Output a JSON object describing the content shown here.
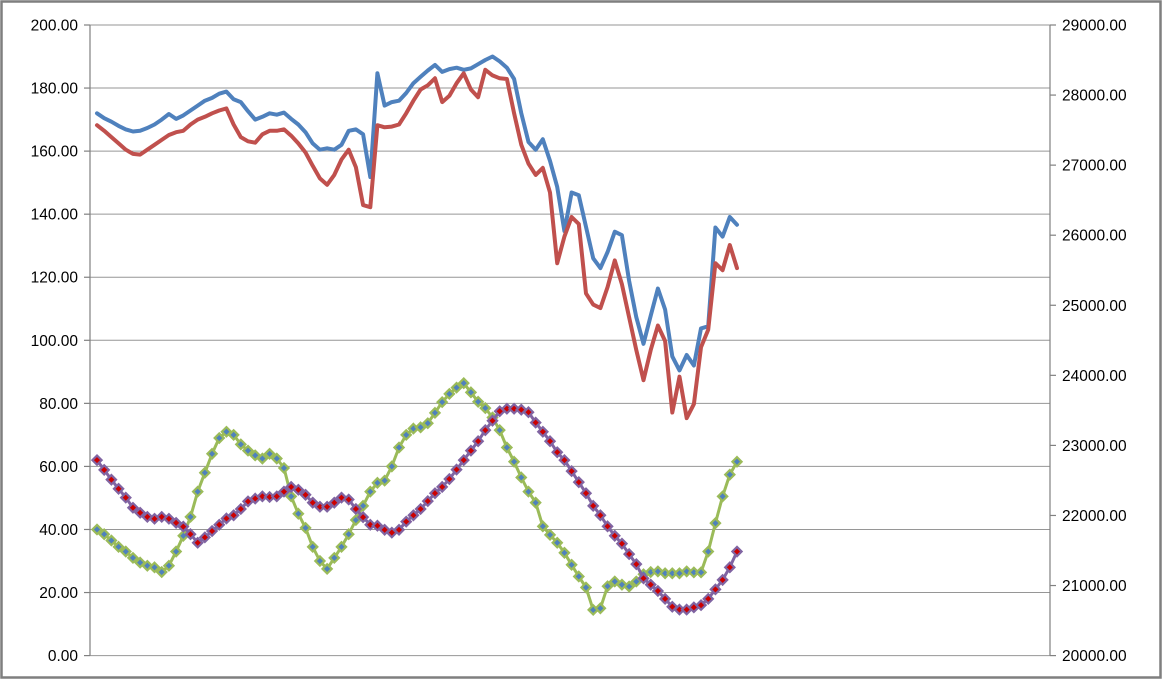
{
  "frame": {
    "background": "#FFFFFF",
    "border_color": "#7F7F7F",
    "plot_background": "#FFFFFF",
    "gridline_color": "#969696",
    "axis_line_color": "#808080"
  },
  "chart_data": {
    "type": "line",
    "title": "",
    "xlabel": "",
    "ylabel_left": "",
    "ylabel_right": "",
    "x_labels_visible": false,
    "n_points": 90,
    "grid": true,
    "legend": false,
    "left_axis": {
      "min": 0,
      "max": 200,
      "step": 20,
      "labels": [
        "200.00",
        "180.00",
        "160.00",
        "140.00",
        "120.00",
        "100.00",
        "80.00",
        "60.00",
        "40.00",
        "20.00",
        "0.00"
      ]
    },
    "right_axis": {
      "min": 20000,
      "max": 29000,
      "step": 1000,
      "labels": [
        "29000.00",
        "28000.00",
        "27000.00",
        "26000.00",
        "25000.00",
        "24000.00",
        "23000.00",
        "22000.00",
        "21000.00",
        "20000.00"
      ]
    },
    "series": [
      {
        "name": "blue-price-line",
        "axis": "right",
        "color": "#4F81BD",
        "line_width": 4,
        "marker": "none",
        "values": [
          27740,
          27670,
          27620,
          27560,
          27510,
          27480,
          27490,
          27530,
          27580,
          27650,
          27730,
          27660,
          27710,
          27780,
          27850,
          27920,
          27960,
          28020,
          28050,
          27940,
          27900,
          27770,
          27650,
          27690,
          27740,
          27720,
          27750,
          27660,
          27580,
          27470,
          27310,
          27220,
          27240,
          27220,
          27290,
          27490,
          27510,
          27440,
          26830,
          28310,
          27850,
          27900,
          27920,
          28030,
          28170,
          28260,
          28350,
          28430,
          28330,
          28370,
          28390,
          28360,
          28380,
          28440,
          28500,
          28550,
          28480,
          28390,
          28230,
          27740,
          27330,
          27220,
          27370,
          27060,
          26690,
          26060,
          26610,
          26570,
          26120,
          25670,
          25530,
          25760,
          26050,
          26000,
          25350,
          24830,
          24450,
          24850,
          25240,
          24940,
          24270,
          24070,
          24290,
          24140,
          24670,
          24700,
          26110,
          25980,
          26260,
          26150
        ]
      },
      {
        "name": "red-price-line",
        "axis": "right",
        "color": "#C0504D",
        "line_width": 4,
        "marker": "none",
        "values": [
          27570,
          27490,
          27400,
          27310,
          27220,
          27160,
          27150,
          27220,
          27290,
          27360,
          27430,
          27470,
          27490,
          27580,
          27650,
          27690,
          27740,
          27780,
          27810,
          27580,
          27400,
          27340,
          27320,
          27440,
          27490,
          27490,
          27510,
          27420,
          27310,
          27180,
          26990,
          26810,
          26720,
          26860,
          27080,
          27220,
          26970,
          26430,
          26400,
          27570,
          27540,
          27550,
          27580,
          27740,
          27920,
          28080,
          28140,
          28240,
          27900,
          27990,
          28170,
          28310,
          28080,
          27970,
          28360,
          28280,
          28240,
          28230,
          27740,
          27290,
          27020,
          26860,
          26960,
          26610,
          25600,
          25980,
          26260,
          26160,
          25170,
          25010,
          24960,
          25260,
          25640,
          25300,
          24830,
          24360,
          23930,
          24360,
          24710,
          24490,
          23470,
          23980,
          23390,
          23590,
          24400,
          24650,
          25600,
          25500,
          25860,
          25530
        ]
      },
      {
        "name": "green-oscillator-line",
        "axis": "left",
        "color": "#9BBB59",
        "line_width": 3,
        "marker": "diamond",
        "marker_fill": "#4F81BD",
        "values": [
          40,
          38.5,
          36.5,
          34.5,
          33,
          31,
          29.5,
          28.5,
          28,
          26.5,
          28.5,
          33,
          38,
          44,
          52,
          58,
          64,
          69,
          71,
          70,
          67,
          65,
          63.5,
          62.5,
          64,
          62.5,
          59.5,
          50.5,
          45,
          40.5,
          34.5,
          30,
          27.5,
          31,
          34.5,
          38.5,
          43,
          47.5,
          52,
          54.8,
          55.5,
          60,
          66,
          70,
          72,
          72.4,
          73.7,
          77,
          80.4,
          83,
          85,
          86.4,
          83.5,
          80.5,
          78.5,
          75.5,
          71.5,
          66,
          61.5,
          56.5,
          52,
          48.5,
          41,
          38.3,
          35.8,
          32.6,
          28.8,
          25.1,
          21.6,
          14.5,
          15,
          22,
          23.5,
          22.5,
          21.9,
          23.5,
          25.8,
          26.5,
          26.7,
          26.1,
          26.1,
          26.1,
          26.7,
          26.4,
          26.4,
          33,
          42,
          50.5,
          57.4,
          61.5
        ]
      },
      {
        "name": "purple-oscillator-line",
        "axis": "left",
        "color": "#8064A2",
        "line_width": 3,
        "marker": "diamond",
        "marker_fill": "#CC0000",
        "values": [
          62,
          58.9,
          55.8,
          52.9,
          50.1,
          46.9,
          45.3,
          44,
          43.4,
          44,
          43.4,
          42.1,
          40.9,
          38.5,
          35.8,
          37.5,
          39.5,
          41.5,
          43.5,
          44.5,
          46.5,
          48.9,
          49.8,
          50.5,
          50.3,
          50.5,
          52,
          53.5,
          52.6,
          51,
          48.5,
          47.2,
          47.2,
          48.5,
          50.1,
          49.5,
          46.5,
          43.9,
          41.5,
          41.2,
          39.9,
          39,
          39.9,
          42.5,
          44.5,
          46.5,
          49,
          51.5,
          53.5,
          56,
          59,
          62,
          65,
          68,
          71.5,
          74.5,
          77.5,
          78.3,
          78.3,
          78,
          77.2,
          73.9,
          71,
          68,
          64.5,
          62,
          58.5,
          55,
          51.5,
          47.5,
          44.5,
          41,
          38,
          35.5,
          32.2,
          29,
          24.5,
          22.5,
          20.5,
          18,
          15.5,
          14.6,
          14.6,
          15.3,
          16,
          18,
          21,
          24,
          28,
          33
        ]
      }
    ]
  }
}
